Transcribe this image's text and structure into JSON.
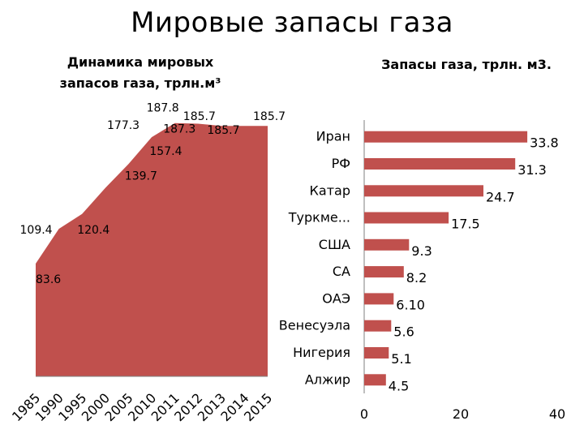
{
  "slide": {
    "title": "Мировые запасы газа",
    "left_chart_title_line1": "Динамика мировых",
    "left_chart_title_line2": "запасов газа, трлн.м³",
    "right_chart_title": "Запасы газа, трлн. м3."
  },
  "colors": {
    "area_fill": "#c0504d",
    "bar_fill": "#c0504d",
    "axis": "#7f7f7f"
  },
  "chart_data": [
    {
      "type": "area",
      "title": "Динамика мировых запасов газа, трлн.м³",
      "categories": [
        "1985",
        "1990",
        "1995",
        "2000",
        "2005",
        "2010",
        "2011",
        "2012",
        "2013",
        "2014",
        "2015"
      ],
      "values": [
        83.6,
        109.4,
        120.4,
        139.7,
        157.4,
        177.3,
        187.8,
        187.3,
        185.7,
        185.7,
        185.7
      ],
      "data_labels": [
        "83.6",
        "109.4",
        "120.4",
        "139.7",
        "157.4",
        "177.3",
        "187.8",
        "187.3",
        "185.7",
        "185.7",
        "185.7"
      ],
      "x_tick_rotation": "45deg",
      "grid": false
    },
    {
      "type": "bar",
      "orientation": "horizontal",
      "title": "Запасы газа, трлн. м3.",
      "categories": [
        "Иран",
        "РФ",
        "Катар",
        "Туркме...",
        "США",
        "СА",
        "ОАЭ",
        "Венесуэла",
        "Нигерия",
        "Алжир"
      ],
      "values": [
        33.8,
        31.3,
        24.7,
        17.5,
        9.3,
        8.2,
        6.1,
        5.6,
        5.1,
        4.5
      ],
      "data_labels": [
        "33.8",
        "31.3",
        "24.7",
        "17.5",
        "9.3",
        "8.2",
        "6.10",
        "5.6",
        "5.1",
        "4.5"
      ],
      "xlim": [
        0,
        40
      ],
      "x_ticks": [
        "0",
        "20",
        "40"
      ],
      "grid": false,
      "legend": "none"
    }
  ]
}
